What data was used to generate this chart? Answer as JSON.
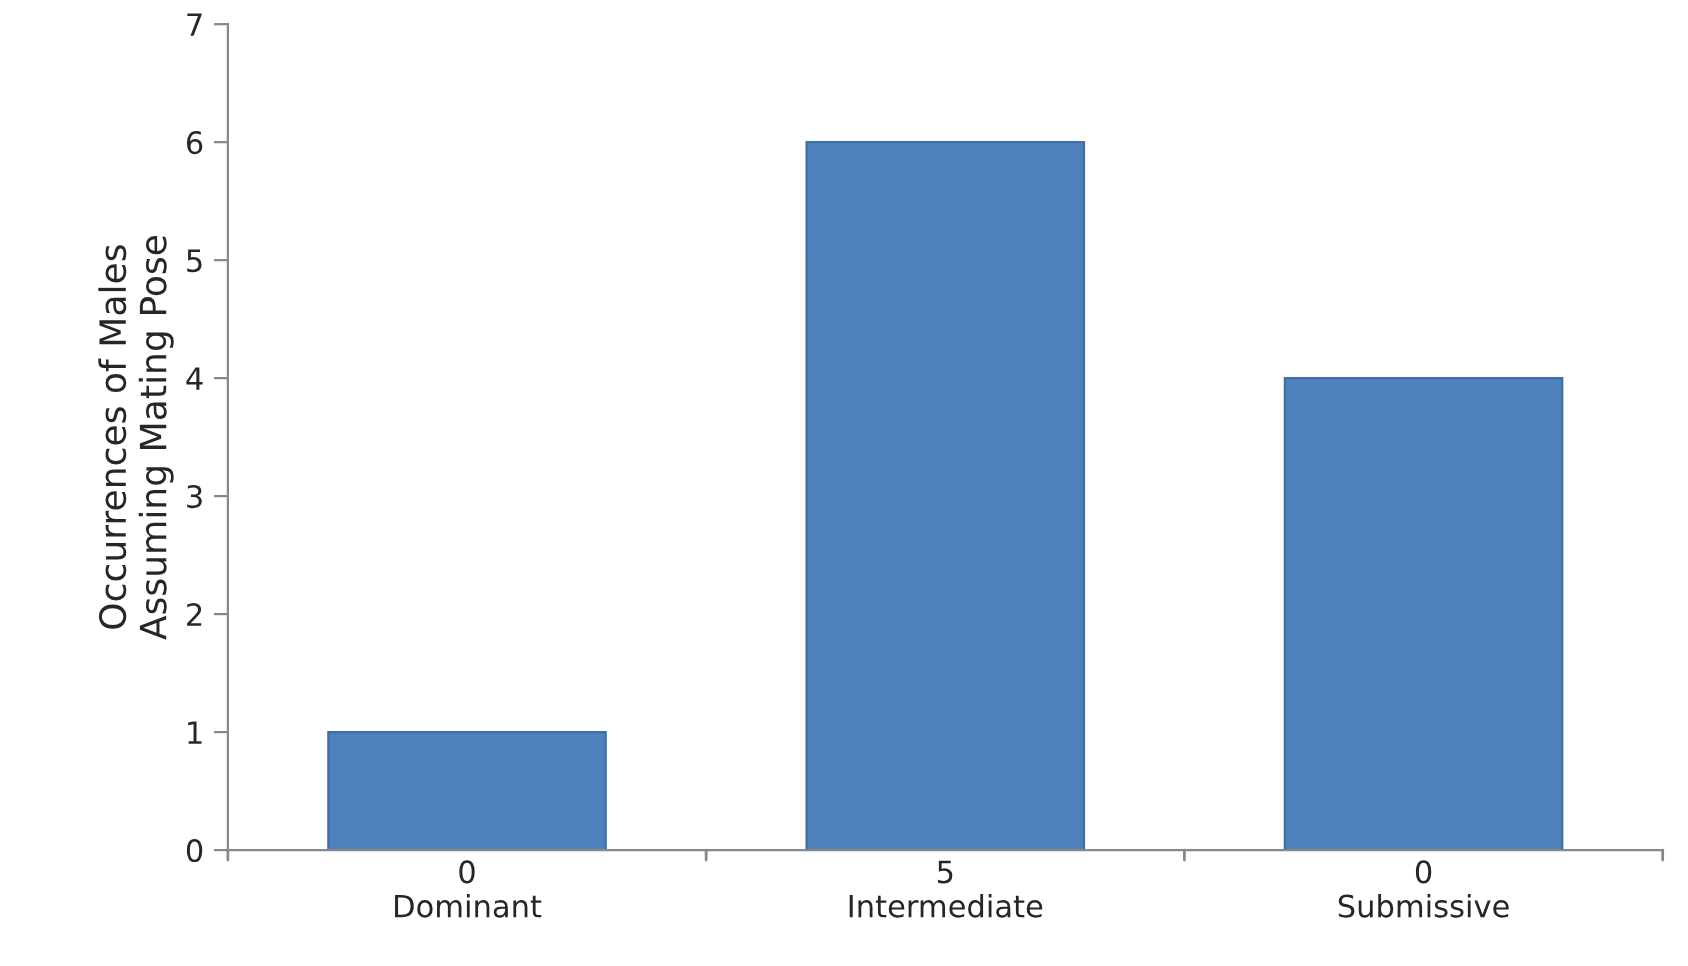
{
  "chart_data": {
    "type": "bar",
    "ylabel": "Occurrences of Males\nAssuming Mating Pose",
    "categories": [
      "0\nDominant",
      "5\nIntermediate",
      "0\nSubmissive"
    ],
    "values": [
      1,
      6,
      4
    ],
    "color": "#4f81bd",
    "ylim": [
      0,
      7
    ],
    "yticks": [
      0,
      1,
      2,
      3,
      4,
      5,
      6,
      7
    ],
    "grid": false
  }
}
